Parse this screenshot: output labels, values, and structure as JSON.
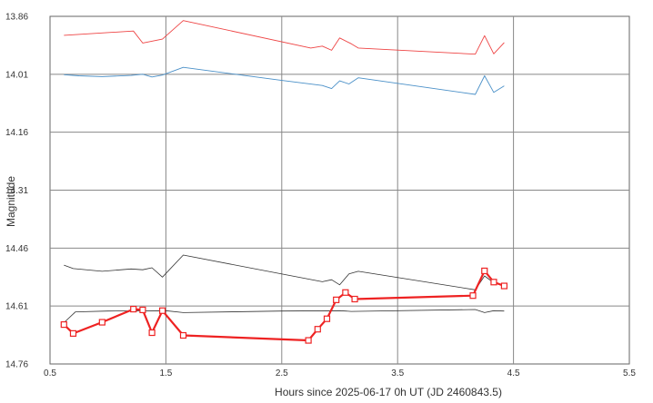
{
  "chart_data": {
    "type": "line",
    "xlabel": "Hours since 2025-06-17 0h UT (JD 2460843.5)",
    "ylabel": "Magnitude",
    "xlim": [
      0.5,
      5.5
    ],
    "ylim": [
      13.86,
      14.76
    ],
    "y_inverted": true,
    "grid": true,
    "x_ticks": [
      "0.5",
      "1.5",
      "2.5",
      "3.5",
      "4.5",
      "5.5"
    ],
    "y_ticks": [
      "13.86",
      "14.01",
      "14.16",
      "14.31",
      "14.46",
      "14.61",
      "14.76"
    ],
    "series": [
      {
        "color": "#ee4444",
        "width": 0.9,
        "markers": false,
        "points": [
          [
            0.62,
            13.909
          ],
          [
            1.22,
            13.898
          ],
          [
            1.3,
            13.929
          ],
          [
            1.47,
            13.919
          ],
          [
            1.65,
            13.871
          ],
          [
            2.75,
            13.942
          ],
          [
            2.85,
            13.937
          ],
          [
            2.93,
            13.948
          ],
          [
            3.0,
            13.916
          ],
          [
            3.1,
            13.931
          ],
          [
            3.16,
            13.942
          ],
          [
            4.17,
            13.958
          ],
          [
            4.25,
            13.91
          ],
          [
            4.33,
            13.957
          ],
          [
            4.42,
            13.928
          ]
        ]
      },
      {
        "color": "#4a90c8",
        "width": 0.9,
        "markers": false,
        "points": [
          [
            0.62,
            14.011
          ],
          [
            0.75,
            14.014
          ],
          [
            0.95,
            14.016
          ],
          [
            1.2,
            14.013
          ],
          [
            1.3,
            14.01
          ],
          [
            1.38,
            14.017
          ],
          [
            1.47,
            14.012
          ],
          [
            1.65,
            13.992
          ],
          [
            2.5,
            14.026
          ],
          [
            2.85,
            14.039
          ],
          [
            2.93,
            14.047
          ],
          [
            3.0,
            14.027
          ],
          [
            3.08,
            14.035
          ],
          [
            3.16,
            14.019
          ],
          [
            4.17,
            14.062
          ],
          [
            4.25,
            14.014
          ],
          [
            4.33,
            14.057
          ],
          [
            4.42,
            14.04
          ]
        ]
      },
      {
        "color": "#333333",
        "width": 0.8,
        "markers": false,
        "points": [
          [
            0.62,
            14.504
          ],
          [
            0.7,
            14.513
          ],
          [
            0.95,
            14.52
          ],
          [
            1.2,
            14.514
          ],
          [
            1.3,
            14.516
          ],
          [
            1.38,
            14.511
          ],
          [
            1.47,
            14.535
          ],
          [
            1.65,
            14.478
          ],
          [
            2.85,
            14.547
          ],
          [
            2.93,
            14.542
          ],
          [
            3.0,
            14.555
          ],
          [
            3.08,
            14.527
          ],
          [
            3.16,
            14.52
          ],
          [
            4.17,
            14.568
          ],
          [
            4.25,
            14.532
          ],
          [
            4.33,
            14.55
          ],
          [
            4.42,
            14.558
          ]
        ]
      },
      {
        "color": "#333333",
        "width": 0.8,
        "markers": false,
        "points": [
          [
            0.62,
            14.653
          ],
          [
            0.72,
            14.625
          ],
          [
            1.0,
            14.623
          ],
          [
            1.5,
            14.622
          ],
          [
            1.65,
            14.627
          ],
          [
            2.5,
            14.623
          ],
          [
            3.0,
            14.622
          ],
          [
            3.1,
            14.624
          ],
          [
            4.17,
            14.619
          ],
          [
            4.25,
            14.627
          ],
          [
            4.33,
            14.622
          ],
          [
            4.42,
            14.623
          ]
        ]
      },
      {
        "color": "#ee2222",
        "width": 2.2,
        "markers": true,
        "points": [
          [
            0.62,
            14.658
          ],
          [
            0.7,
            14.681
          ],
          [
            0.95,
            14.652
          ],
          [
            1.22,
            14.618
          ],
          [
            1.3,
            14.62
          ],
          [
            1.38,
            14.679
          ],
          [
            1.47,
            14.622
          ],
          [
            1.65,
            14.686
          ],
          [
            2.73,
            14.699
          ],
          [
            2.81,
            14.67
          ],
          [
            2.89,
            14.643
          ],
          [
            2.97,
            14.594
          ],
          [
            3.05,
            14.575
          ],
          [
            3.13,
            14.592
          ],
          [
            4.15,
            14.583
          ],
          [
            4.25,
            14.519
          ],
          [
            4.33,
            14.548
          ],
          [
            4.42,
            14.558
          ]
        ]
      }
    ]
  }
}
